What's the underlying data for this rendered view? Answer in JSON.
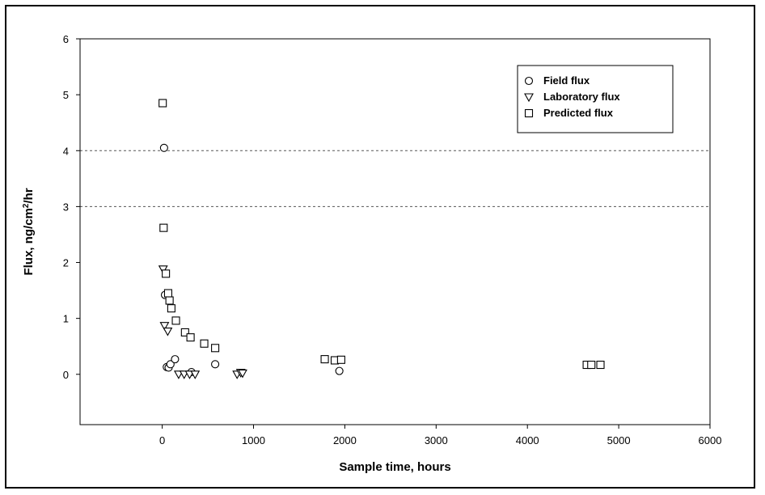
{
  "chart_data": {
    "type": "scatter",
    "title": "",
    "xlabel": "Sample time, hours",
    "ylabel_main": "Flux, ng/cm",
    "ylabel_sup": "2",
    "ylabel_tail": "/hr",
    "xlim": [
      -900,
      6000
    ],
    "ylim": [
      -0.9,
      6
    ],
    "xticks": [
      "0",
      "1000",
      "2000",
      "3000",
      "4000",
      "5000",
      "6000"
    ],
    "yticks": [
      "0",
      "1",
      "2",
      "3",
      "4",
      "5",
      "6"
    ],
    "gridlines_y": [
      3,
      4
    ],
    "legend_position": "top-right",
    "series": [
      {
        "name": "Field flux",
        "marker": "circle",
        "points": [
          [
            20,
            4.05
          ],
          [
            30,
            1.42
          ],
          [
            50,
            0.13
          ],
          [
            70,
            0.12
          ],
          [
            90,
            0.18
          ],
          [
            140,
            0.27
          ],
          [
            320,
            0.04
          ],
          [
            580,
            0.18
          ],
          [
            1940,
            0.06
          ]
        ]
      },
      {
        "name": "Laboratory flux",
        "marker": "triangle-down",
        "points": [
          [
            10,
            1.88
          ],
          [
            25,
            0.87
          ],
          [
            60,
            0.77
          ],
          [
            180,
            0.0
          ],
          [
            240,
            0.0
          ],
          [
            300,
            0.0
          ],
          [
            360,
            0.0
          ],
          [
            820,
            0.0
          ],
          [
            860,
            0.03
          ],
          [
            880,
            0.02
          ]
        ]
      },
      {
        "name": "Predicted flux",
        "marker": "square",
        "points": [
          [
            5,
            4.85
          ],
          [
            15,
            2.62
          ],
          [
            40,
            1.8
          ],
          [
            65,
            1.45
          ],
          [
            80,
            1.32
          ],
          [
            100,
            1.18
          ],
          [
            150,
            0.96
          ],
          [
            250,
            0.75
          ],
          [
            310,
            0.66
          ],
          [
            460,
            0.55
          ],
          [
            580,
            0.47
          ],
          [
            1780,
            0.27
          ],
          [
            1890,
            0.25
          ],
          [
            1960,
            0.26
          ],
          [
            4650,
            0.17
          ],
          [
            4700,
            0.17
          ],
          [
            4800,
            0.17
          ]
        ]
      }
    ]
  }
}
